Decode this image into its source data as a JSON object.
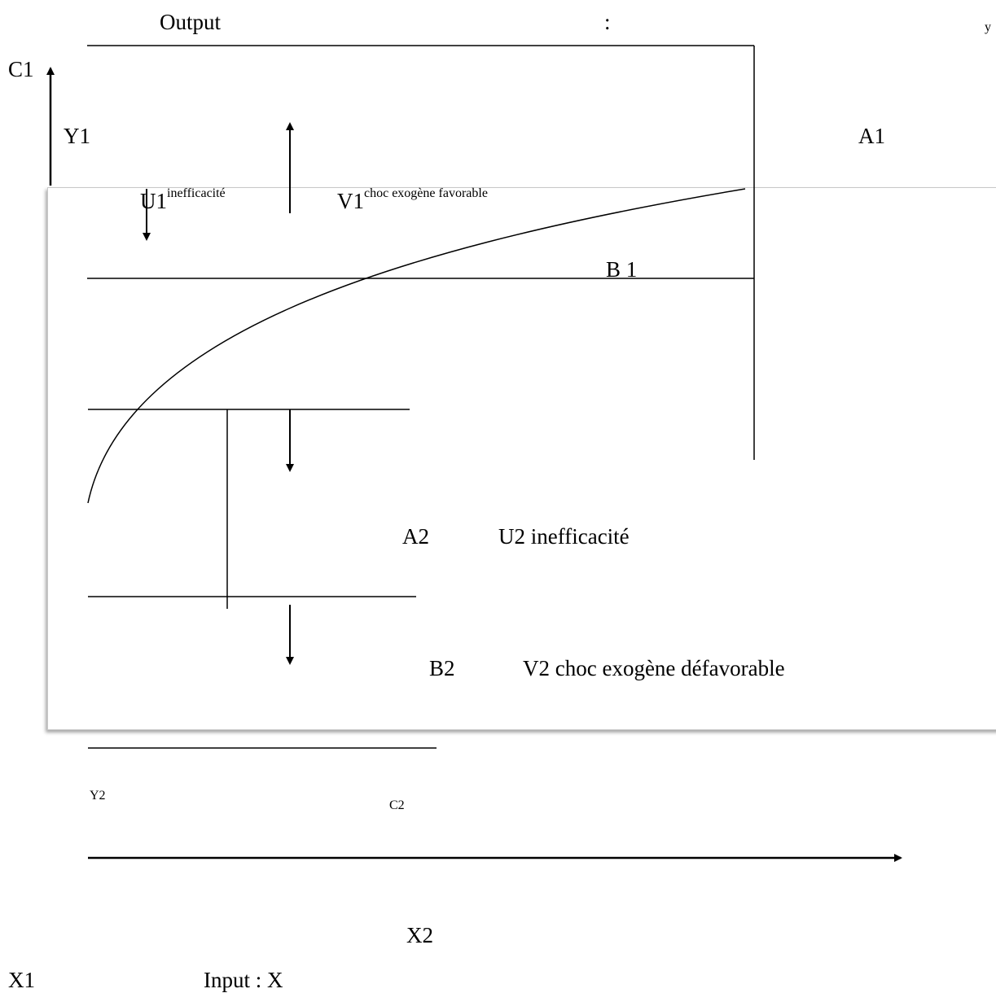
{
  "labels": {
    "output": "Output",
    "colon": ":",
    "y_corner": "y",
    "c1": "C1",
    "y1": "Y1",
    "a1": "A1",
    "u1": "U1",
    "u1_sup": "inefficacité",
    "v1": "V1",
    "v1_sup": "choc exogène favorable",
    "b1": "B 1",
    "a2": "A2",
    "u2": "U2 inefficacité",
    "b2": "B2",
    "v2": "V2 choc exogène défavorable",
    "y2": "Y2",
    "c2": "C2",
    "x2": "X2",
    "x1": "X1",
    "input": "Input : X"
  },
  "colors": {
    "ink": "#000000",
    "frame_border": "#c8c8c8"
  }
}
